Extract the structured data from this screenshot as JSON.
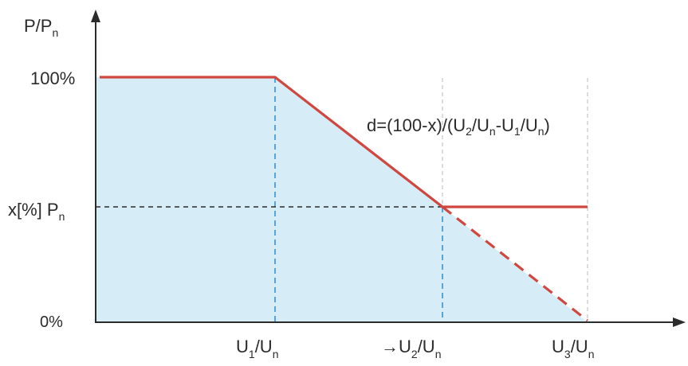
{
  "axes": {
    "y_label": "P/P",
    "y_label_sub": "n",
    "y_ticks": {
      "top": "100%",
      "mid_prefix": "x[%] P",
      "mid_sub": "n",
      "bottom": "0%"
    },
    "x_ticks": [
      {
        "main": "U",
        "sub1": "1",
        "mid": "/U",
        "sub2": "n"
      },
      {
        "main": "→U",
        "sub1": "2",
        "mid": "/U",
        "sub2": "n"
      },
      {
        "main": "U",
        "sub1": "3",
        "mid": "/U",
        "sub2": "n"
      }
    ]
  },
  "formula": {
    "p1": "d=(100-x)/(U",
    "s1": "2",
    "p2": "/U",
    "s2": "n",
    "p3": "-U",
    "s3": "1",
    "p4": "/U",
    "s4": "n",
    "p5": ")"
  },
  "colors": {
    "curve": "#d0473f",
    "fill": "#cfeaf6",
    "axis": "#2b2b2b",
    "guide_blue": "#3a8fd6",
    "guide_gray": "#b8b8b8"
  }
}
